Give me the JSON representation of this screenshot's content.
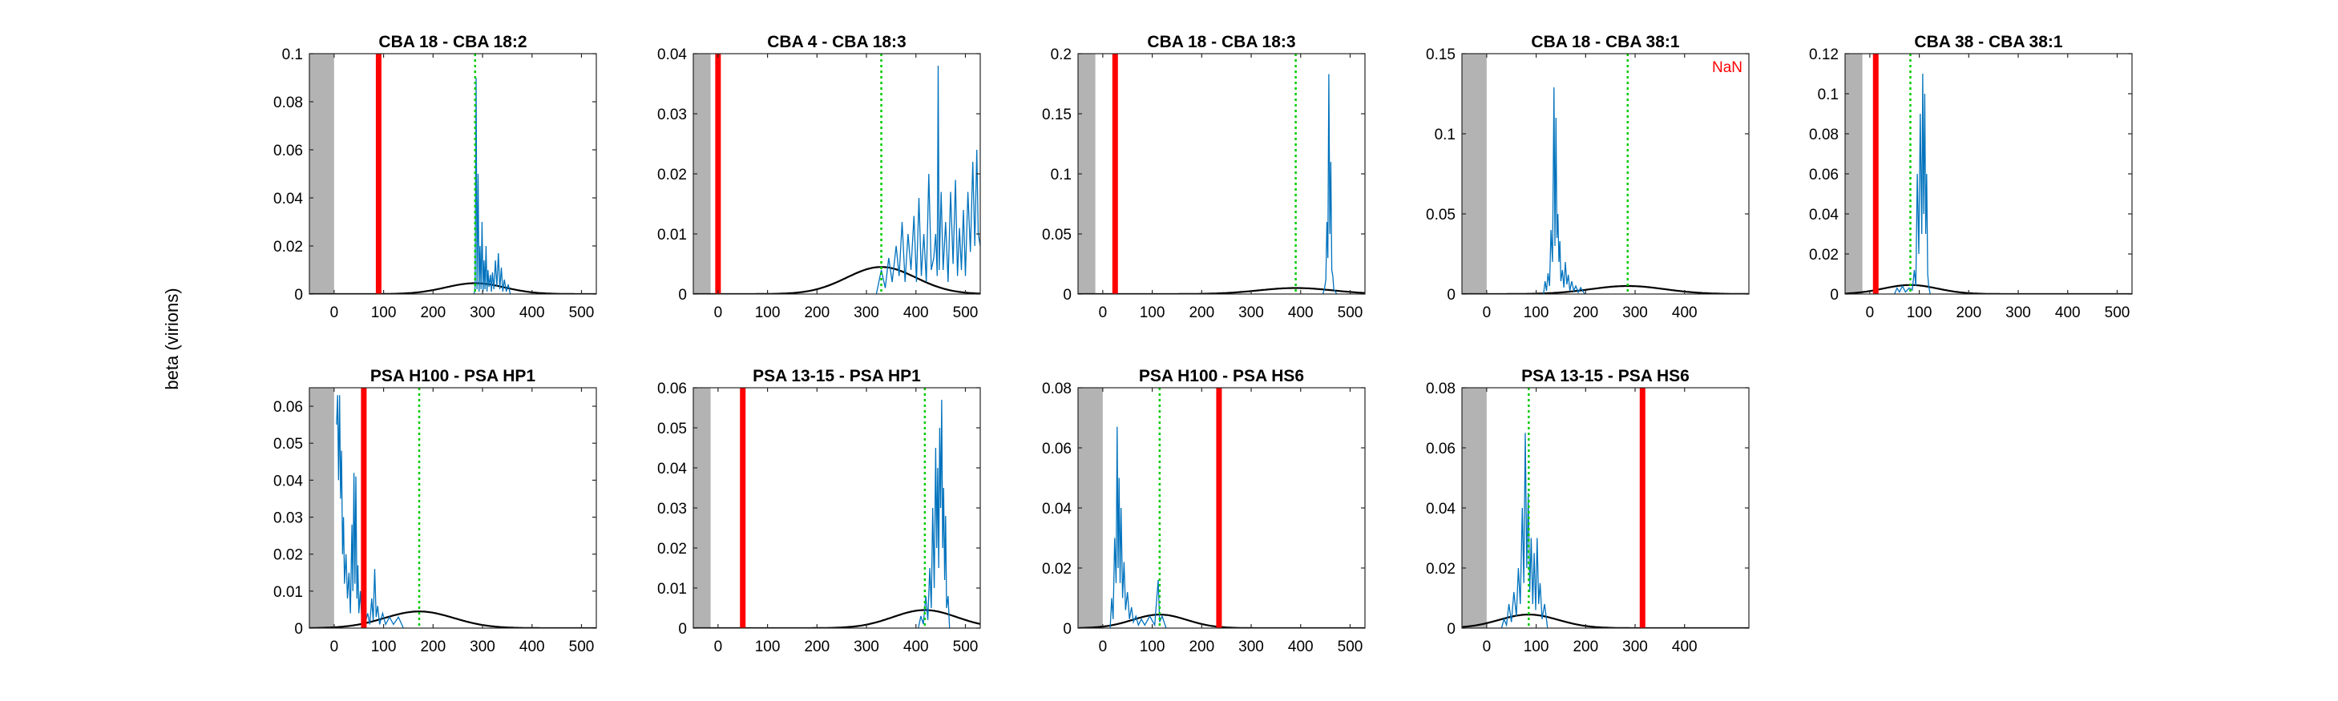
{
  "figure": {
    "ylabel": "beta (virions)",
    "colors": {
      "trace": "#0072BD",
      "curve": "#000000",
      "red_line": "#FF0000",
      "dotted_line": "#00CC00",
      "shade": "#B3B3B3",
      "nan_text": "#FF0000"
    }
  },
  "chart_data": [
    {
      "type": "line",
      "title": "CBA 18 - CBA 18:2",
      "xlim": [
        -50,
        530
      ],
      "ylim": [
        0,
        0.1
      ],
      "xticks": [
        0,
        100,
        200,
        300,
        400,
        500
      ],
      "yticks": [
        0,
        0.02,
        0.04,
        0.06,
        0.08,
        0.1
      ],
      "ytick_labels": [
        "0",
        "0.02",
        "0.04",
        "0.06",
        "0.08",
        "0.1"
      ],
      "shaded_region": [
        -50,
        0
      ],
      "red_line_x": 90,
      "dotted_line_x": 285,
      "gaussian": {
        "mean": 285,
        "sd": 60,
        "peak": 0.0045
      },
      "trace": [
        [
          283,
          0
        ],
        [
          285,
          0.003
        ],
        [
          287,
          0.09
        ],
        [
          289,
          0.002
        ],
        [
          291,
          0.05
        ],
        [
          293,
          0.001
        ],
        [
          295,
          0.02
        ],
        [
          297,
          0.002
        ],
        [
          299,
          0.03
        ],
        [
          301,
          0.001
        ],
        [
          303,
          0.014
        ],
        [
          305,
          0.002
        ],
        [
          307,
          0.02
        ],
        [
          309,
          0.001
        ],
        [
          311,
          0.01
        ],
        [
          313,
          0.003
        ],
        [
          316,
          0.008
        ],
        [
          318,
          0.001
        ],
        [
          320,
          0.009
        ],
        [
          323,
          0.002
        ],
        [
          326,
          0.014
        ],
        [
          329,
          0.003
        ],
        [
          332,
          0.017
        ],
        [
          335,
          0.002
        ],
        [
          338,
          0.011
        ],
        [
          341,
          0.001
        ],
        [
          344,
          0.006
        ],
        [
          348,
          0.001
        ],
        [
          352,
          0.004
        ],
        [
          356,
          0
        ]
      ],
      "nan_label": ""
    },
    {
      "type": "line",
      "title": "CBA 4 - CBA 18:3",
      "xlim": [
        -50,
        530
      ],
      "ylim": [
        0,
        0.04
      ],
      "xticks": [
        0,
        100,
        200,
        300,
        400,
        500
      ],
      "yticks": [
        0,
        0.01,
        0.02,
        0.03,
        0.04
      ],
      "ytick_labels": [
        "0",
        "0.01",
        "0.02",
        "0.03",
        "0.04"
      ],
      "shaded_region": [
        -50,
        -15
      ],
      "red_line_x": 0,
      "dotted_line_x": 330,
      "gaussian": {
        "mean": 330,
        "sd": 70,
        "peak": 0.0045
      },
      "trace": [
        [
          320,
          0
        ],
        [
          330,
          0.004
        ],
        [
          338,
          0.001
        ],
        [
          345,
          0.006
        ],
        [
          352,
          0.002
        ],
        [
          360,
          0.008
        ],
        [
          366,
          0.003
        ],
        [
          372,
          0.012
        ],
        [
          378,
          0.002
        ],
        [
          384,
          0.01
        ],
        [
          390,
          0.004
        ],
        [
          396,
          0.013
        ],
        [
          401,
          0.002
        ],
        [
          406,
          0.016
        ],
        [
          411,
          0.003
        ],
        [
          416,
          0.01
        ],
        [
          421,
          0.002
        ],
        [
          426,
          0.02
        ],
        [
          431,
          0.004
        ],
        [
          436,
          0.006
        ],
        [
          440,
          0.01
        ],
        [
          443,
          0.003
        ],
        [
          445,
          0.038
        ],
        [
          447,
          0.004
        ],
        [
          451,
          0.017
        ],
        [
          455,
          0.004
        ],
        [
          460,
          0.012
        ],
        [
          465,
          0.002
        ],
        [
          470,
          0.017
        ],
        [
          475,
          0.005
        ],
        [
          480,
          0.019
        ],
        [
          484,
          0.003
        ],
        [
          488,
          0.011
        ],
        [
          492,
          0.004
        ],
        [
          496,
          0.014
        ],
        [
          500,
          0.003
        ],
        [
          505,
          0.017
        ],
        [
          510,
          0.007
        ],
        [
          515,
          0.022
        ],
        [
          519,
          0.008
        ],
        [
          523,
          0.024
        ],
        [
          526,
          0.01
        ],
        [
          530,
          0.008
        ]
      ],
      "nan_label": ""
    },
    {
      "type": "line",
      "title": "CBA 18 - CBA 18:3",
      "xlim": [
        -50,
        530
      ],
      "ylim": [
        0,
        0.2
      ],
      "xticks": [
        0,
        100,
        200,
        300,
        400,
        500
      ],
      "yticks": [
        0,
        0.05,
        0.1,
        0.15,
        0.2
      ],
      "ytick_labels": [
        "0",
        "0.05",
        "0.1",
        "0.15",
        "0.2"
      ],
      "shaded_region": [
        -50,
        -15
      ],
      "red_line_x": 25,
      "dotted_line_x": 390,
      "gaussian": {
        "mean": 390,
        "sd": 75,
        "peak": 0.005
      },
      "trace": [
        [
          445,
          0
        ],
        [
          448,
          0.004
        ],
        [
          451,
          0.012
        ],
        [
          453,
          0.06
        ],
        [
          455,
          0.03
        ],
        [
          457,
          0.183
        ],
        [
          459,
          0.05
        ],
        [
          461,
          0.11
        ],
        [
          463,
          0.02
        ],
        [
          465,
          0.015
        ],
        [
          467,
          0.004
        ],
        [
          470,
          0.002
        ],
        [
          473,
          0
        ]
      ],
      "nan_label": ""
    },
    {
      "type": "line",
      "title": "CBA 18 - CBA 38:1",
      "xlim": [
        -50,
        530
      ],
      "ylim": [
        0,
        0.15
      ],
      "xticks": [
        0,
        100,
        200,
        300,
        400
      ],
      "yticks": [
        0,
        0.05,
        0.1,
        0.15
      ],
      "ytick_labels": [
        "0",
        "0.05",
        "0.1",
        "0.15"
      ],
      "shaded_region": [
        -50,
        0
      ],
      "red_line_x": null,
      "dotted_line_x": 285,
      "gaussian": {
        "mean": 285,
        "sd": 75,
        "peak": 0.005
      },
      "trace": [
        [
          115,
          0
        ],
        [
          118,
          0.008
        ],
        [
          121,
          0.002
        ],
        [
          124,
          0.013
        ],
        [
          127,
          0.005
        ],
        [
          130,
          0.04
        ],
        [
          133,
          0.02
        ],
        [
          136,
          0.129
        ],
        [
          138,
          0.03
        ],
        [
          140,
          0.11
        ],
        [
          142,
          0.035
        ],
        [
          144,
          0.05
        ],
        [
          146,
          0.02
        ],
        [
          148,
          0.033
        ],
        [
          150,
          0.008
        ],
        [
          153,
          0.015
        ],
        [
          156,
          0.004
        ],
        [
          159,
          0.02
        ],
        [
          162,
          0.006
        ],
        [
          165,
          0.012
        ],
        [
          168,
          0.002
        ],
        [
          172,
          0.008
        ],
        [
          176,
          0.002
        ],
        [
          180,
          0.005
        ],
        [
          185,
          0.001
        ],
        [
          190,
          0.004
        ],
        [
          198,
          0
        ]
      ],
      "nan_label": "NaN"
    },
    {
      "type": "line",
      "title": "CBA 38 - CBA 38:1",
      "xlim": [
        -50,
        530
      ],
      "ylim": [
        0,
        0.12
      ],
      "xticks": [
        0,
        100,
        200,
        300,
        400,
        500
      ],
      "yticks": [
        0,
        0.02,
        0.04,
        0.06,
        0.08,
        0.1,
        0.12
      ],
      "ytick_labels": [
        "0",
        "0.02",
        "0.04",
        "0.06",
        "0.08",
        "0.1",
        "0.12"
      ],
      "shaded_region": [
        -50,
        -15
      ],
      "red_line_x": 12,
      "dotted_line_x": 82,
      "gaussian": {
        "mean": 82,
        "sd": 55,
        "peak": 0.0045
      },
      "trace": [
        [
          50,
          0
        ],
        [
          55,
          0.003
        ],
        [
          60,
          0.001
        ],
        [
          66,
          0.004
        ],
        [
          72,
          0.001
        ],
        [
          80,
          0.003
        ],
        [
          86,
          0.002
        ],
        [
          90,
          0.012
        ],
        [
          93,
          0.004
        ],
        [
          96,
          0.06
        ],
        [
          99,
          0.02
        ],
        [
          102,
          0.09
        ],
        [
          105,
          0.03
        ],
        [
          107,
          0.11
        ],
        [
          109,
          0.04
        ],
        [
          111,
          0.1
        ],
        [
          113,
          0.03
        ],
        [
          115,
          0.06
        ],
        [
          117,
          0.01
        ],
        [
          119,
          0.004
        ],
        [
          122,
          0
        ]
      ],
      "nan_label": ""
    },
    {
      "type": "line",
      "title": "PSA H100 - PSA HP1",
      "xlim": [
        -50,
        530
      ],
      "ylim": [
        0,
        0.065
      ],
      "xticks": [
        0,
        100,
        200,
        300,
        400,
        500
      ],
      "yticks": [
        0,
        0.01,
        0.02,
        0.03,
        0.04,
        0.05,
        0.06
      ],
      "ytick_labels": [
        "0",
        "0.01",
        "0.02",
        "0.03",
        "0.04",
        "0.05",
        "0.06"
      ],
      "shaded_region": [
        -50,
        0
      ],
      "red_line_x": 60,
      "dotted_line_x": 172,
      "gaussian": {
        "mean": 172,
        "sd": 70,
        "peak": 0.0045
      },
      "trace": [
        [
          5,
          0.055
        ],
        [
          7,
          0.063
        ],
        [
          9,
          0.04
        ],
        [
          11,
          0.063
        ],
        [
          13,
          0.035
        ],
        [
          15,
          0.048
        ],
        [
          17,
          0.02
        ],
        [
          19,
          0.03
        ],
        [
          21,
          0.012
        ],
        [
          24,
          0.02
        ],
        [
          27,
          0.008
        ],
        [
          30,
          0.015
        ],
        [
          33,
          0.004
        ],
        [
          36,
          0.028
        ],
        [
          38,
          0.01
        ],
        [
          40,
          0.042
        ],
        [
          42,
          0.012
        ],
        [
          44,
          0.041
        ],
        [
          46,
          0.008
        ],
        [
          48,
          0.017
        ],
        [
          50,
          0.004
        ],
        [
          53,
          0.01
        ],
        [
          56,
          0.002
        ],
        [
          60,
          0.006
        ],
        [
          64,
          0.002
        ],
        [
          68,
          0.004
        ],
        [
          72,
          0.001
        ],
        [
          76,
          0.008
        ],
        [
          79,
          0.002
        ],
        [
          82,
          0.016
        ],
        [
          85,
          0.003
        ],
        [
          88,
          0.006
        ],
        [
          92,
          0.001
        ],
        [
          98,
          0.004
        ],
        [
          104,
          0.001
        ],
        [
          112,
          0.003
        ],
        [
          120,
          0.001
        ],
        [
          130,
          0.003
        ],
        [
          140,
          0
        ]
      ],
      "nan_label": ""
    },
    {
      "type": "line",
      "title": "PSA 13-15 - PSA HP1",
      "xlim": [
        -50,
        530
      ],
      "ylim": [
        0,
        0.06
      ],
      "xticks": [
        0,
        100,
        200,
        300,
        400,
        500
      ],
      "yticks": [
        0,
        0.01,
        0.02,
        0.03,
        0.04,
        0.05,
        0.06
      ],
      "ytick_labels": [
        "0",
        "0.01",
        "0.02",
        "0.03",
        "0.04",
        "0.05",
        "0.06"
      ],
      "shaded_region": [
        -50,
        -15
      ],
      "red_line_x": 50,
      "dotted_line_x": 418,
      "gaussian": {
        "mean": 418,
        "sd": 65,
        "peak": 0.0045
      },
      "trace": [
        [
          405,
          0
        ],
        [
          410,
          0.003
        ],
        [
          415,
          0.001
        ],
        [
          420,
          0.008
        ],
        [
          424,
          0.002
        ],
        [
          428,
          0.015
        ],
        [
          431,
          0.005
        ],
        [
          434,
          0.03
        ],
        [
          437,
          0.01
        ],
        [
          440,
          0.045
        ],
        [
          442,
          0.02
        ],
        [
          444,
          0.04
        ],
        [
          446,
          0.015
        ],
        [
          448,
          0.05
        ],
        [
          450,
          0.03
        ],
        [
          452,
          0.057
        ],
        [
          454,
          0.02
        ],
        [
          456,
          0.035
        ],
        [
          458,
          0.012
        ],
        [
          460,
          0.028
        ],
        [
          462,
          0.005
        ],
        [
          465,
          0.008
        ],
        [
          468,
          0
        ]
      ],
      "nan_label": ""
    },
    {
      "type": "line",
      "title": "PSA H100 - PSA HS6",
      "xlim": [
        -50,
        530
      ],
      "ylim": [
        0,
        0.08
      ],
      "xticks": [
        0,
        100,
        200,
        300,
        400,
        500
      ],
      "yticks": [
        0,
        0.02,
        0.04,
        0.06,
        0.08
      ],
      "ytick_labels": [
        "0",
        "0.02",
        "0.04",
        "0.06",
        "0.08"
      ],
      "shaded_region": [
        -50,
        0
      ],
      "red_line_x": 235,
      "dotted_line_x": 115,
      "gaussian": {
        "mean": 115,
        "sd": 55,
        "peak": 0.0045
      },
      "trace": [
        [
          15,
          0
        ],
        [
          18,
          0.01
        ],
        [
          21,
          0.003
        ],
        [
          24,
          0.03
        ],
        [
          27,
          0.015
        ],
        [
          29,
          0.067
        ],
        [
          31,
          0.02
        ],
        [
          33,
          0.05
        ],
        [
          35,
          0.015
        ],
        [
          37,
          0.04
        ],
        [
          40,
          0.01
        ],
        [
          43,
          0.022
        ],
        [
          46,
          0.006
        ],
        [
          50,
          0.012
        ],
        [
          54,
          0.003
        ],
        [
          58,
          0.007
        ],
        [
          62,
          0.002
        ],
        [
          67,
          0.004
        ],
        [
          72,
          0.001
        ],
        [
          78,
          0.003
        ],
        [
          85,
          0.001
        ],
        [
          95,
          0.004
        ],
        [
          105,
          0.001
        ],
        [
          112,
          0.016
        ],
        [
          115,
          0.002
        ],
        [
          120,
          0.004
        ],
        [
          128,
          0
        ]
      ],
      "nan_label": ""
    },
    {
      "type": "line",
      "title": "PSA 13-15 - PSA HS6",
      "xlim": [
        -50,
        530
      ],
      "ylim": [
        0,
        0.08
      ],
      "xticks": [
        0,
        100,
        200,
        300,
        400
      ],
      "yticks": [
        0,
        0.02,
        0.04,
        0.06,
        0.08
      ],
      "ytick_labels": [
        "0",
        "0.02",
        "0.04",
        "0.06",
        "0.08"
      ],
      "shaded_region": [
        -50,
        0
      ],
      "red_line_x": 315,
      "dotted_line_x": 85,
      "gaussian": {
        "mean": 85,
        "sd": 60,
        "peak": 0.0045
      },
      "trace": [
        [
          30,
          0
        ],
        [
          35,
          0.003
        ],
        [
          40,
          0.001
        ],
        [
          45,
          0.008
        ],
        [
          50,
          0.002
        ],
        [
          55,
          0.012
        ],
        [
          60,
          0.004
        ],
        [
          64,
          0.02
        ],
        [
          68,
          0.008
        ],
        [
          72,
          0.04
        ],
        [
          75,
          0.015
        ],
        [
          78,
          0.065
        ],
        [
          81,
          0.02
        ],
        [
          84,
          0.045
        ],
        [
          87,
          0.012
        ],
        [
          90,
          0.03
        ],
        [
          93,
          0.008
        ],
        [
          96,
          0.025
        ],
        [
          99,
          0.006
        ],
        [
          102,
          0.03
        ],
        [
          105,
          0.008
        ],
        [
          108,
          0.015
        ],
        [
          112,
          0.003
        ],
        [
          117,
          0.008
        ],
        [
          123,
          0
        ]
      ],
      "nan_label": ""
    }
  ]
}
